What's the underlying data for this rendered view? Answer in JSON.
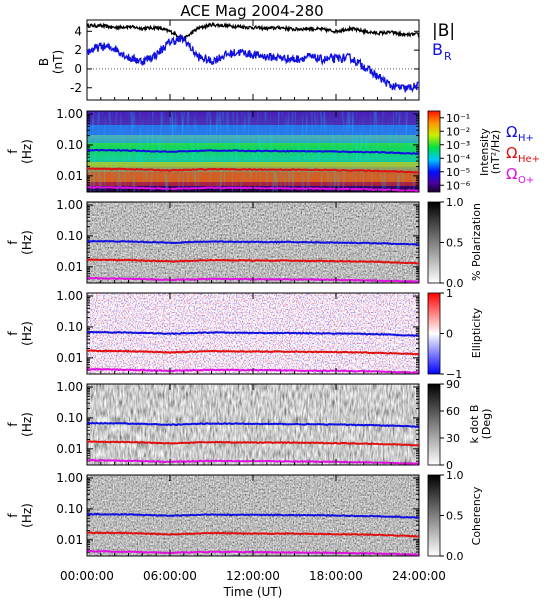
{
  "title": "ACE Mag 2004-280",
  "xlabel": "Time (UT)",
  "x_ticks": [
    "00:00:00",
    "06:00:00",
    "12:00:00",
    "18:00:00",
    "24:00:00"
  ],
  "x_tick_hours": [
    0,
    6,
    12,
    18,
    24
  ],
  "x_range_hours": [
    0,
    24
  ],
  "panel_labels": {
    "mag_ylabel_top": "B",
    "mag_ylabel_bottom": "(nT)",
    "f_ylabel_top": "f",
    "f_ylabel_bottom": "(Hz)"
  },
  "mag_legend": {
    "btot_text": "|B|",
    "br_text": "B",
    "br_sub": "R",
    "btot_color": "#000000",
    "br_color": "#1010e0"
  },
  "gyro_legend": {
    "h_text": "Ω",
    "h_sub": "H+",
    "h_color": "#1010e0",
    "he_text": "Ω",
    "he_sub": "He+",
    "he_color": "#e01010",
    "o_text": "Ω",
    "o_sub": "O+",
    "o_color": "#e010e0"
  },
  "freq_ticks": [
    "1.00",
    "0.10",
    "0.01"
  ],
  "colorbars": {
    "intensity": {
      "label_top": "Intensity",
      "label_bottom": "(nT²/Hz)",
      "ticks": [
        "10⁻¹",
        "10⁻²",
        "10⁻³",
        "10⁻⁴",
        "10⁻⁵",
        "10⁻⁶"
      ],
      "tick_exponents": [
        -1,
        -2,
        -3,
        -4,
        -5,
        -6
      ],
      "range_exponent": [
        -6.5,
        -0.5
      ]
    },
    "polarization": {
      "label": "% Polarization",
      "ticks": [
        "1.0",
        "0.5",
        "0.0"
      ],
      "tick_values": [
        1,
        0.5,
        0
      ],
      "range": [
        0,
        1
      ]
    },
    "ellipticity": {
      "label": "Ellipticity",
      "ticks": [
        "1",
        "0",
        "−1"
      ],
      "tick_values": [
        1,
        0,
        -1
      ],
      "range": [
        -1,
        1
      ]
    },
    "kdotb": {
      "label_top": "k dot B",
      "label_bottom": "(Deg)",
      "ticks": [
        "90",
        "60",
        "30",
        "0"
      ],
      "tick_values": [
        90,
        60,
        30,
        0
      ],
      "range": [
        0,
        90
      ]
    },
    "coherency": {
      "label": "Coherency",
      "ticks": [
        "1.0",
        "0.5",
        "0.0"
      ],
      "tick_values": [
        1,
        0.5,
        0
      ],
      "range": [
        0,
        1
      ]
    }
  },
  "chart_data": {
    "type": "line",
    "title": "ACE Mag 2004-280",
    "xlabel": "Time (UT)",
    "panels": [
      {
        "name": "mag",
        "ylabel": "B (nT)",
        "ylim": [
          -3.3,
          5.2
        ],
        "y_ticks": [
          4,
          2,
          0,
          -2
        ],
        "x": [
          0,
          1,
          2,
          3,
          4,
          5,
          6,
          7,
          8,
          9,
          10,
          11,
          12,
          13,
          14,
          15,
          16,
          17,
          18,
          19,
          20,
          21,
          22,
          23,
          24
        ],
        "series": [
          {
            "name": "|B|",
            "values": [
              4.6,
              4.6,
              4.4,
              4.5,
              4.3,
              4.4,
              4.0,
              3.2,
              4.3,
              4.7,
              4.6,
              4.5,
              4.4,
              4.3,
              4.4,
              4.2,
              4.3,
              4.2,
              4.0,
              4.3,
              4.0,
              3.8,
              3.9,
              3.6,
              3.7
            ]
          },
          {
            "name": "BR",
            "values": [
              1.8,
              2.4,
              2.2,
              1.2,
              0.8,
              1.5,
              2.9,
              3.2,
              1.3,
              0.8,
              1.5,
              1.8,
              1.5,
              1.3,
              1.2,
              1.0,
              1.3,
              1.0,
              1.1,
              1.2,
              0.3,
              -0.8,
              -1.8,
              -2.1,
              -1.8
            ]
          }
        ]
      },
      {
        "name": "gyrofrequencies",
        "ylabel": "f (Hz)",
        "yscale": "log",
        "ylim": [
          0.003,
          1.25
        ],
        "x": [
          0,
          3,
          6,
          9,
          12,
          15,
          18,
          21,
          24
        ],
        "series": [
          {
            "name": "ΩH+",
            "values": [
              0.068,
              0.066,
              0.06,
              0.066,
              0.064,
              0.063,
              0.061,
              0.058,
              0.052
            ]
          },
          {
            "name": "ΩHe+",
            "values": [
              0.017,
              0.0165,
              0.015,
              0.0165,
              0.016,
              0.0158,
              0.0153,
              0.0145,
              0.013
            ]
          },
          {
            "name": "ΩO+",
            "values": [
              0.0043,
              0.0041,
              0.0038,
              0.0041,
              0.004,
              0.0039,
              0.0038,
              0.0036,
              0.0033
            ]
          }
        ]
      }
    ]
  }
}
